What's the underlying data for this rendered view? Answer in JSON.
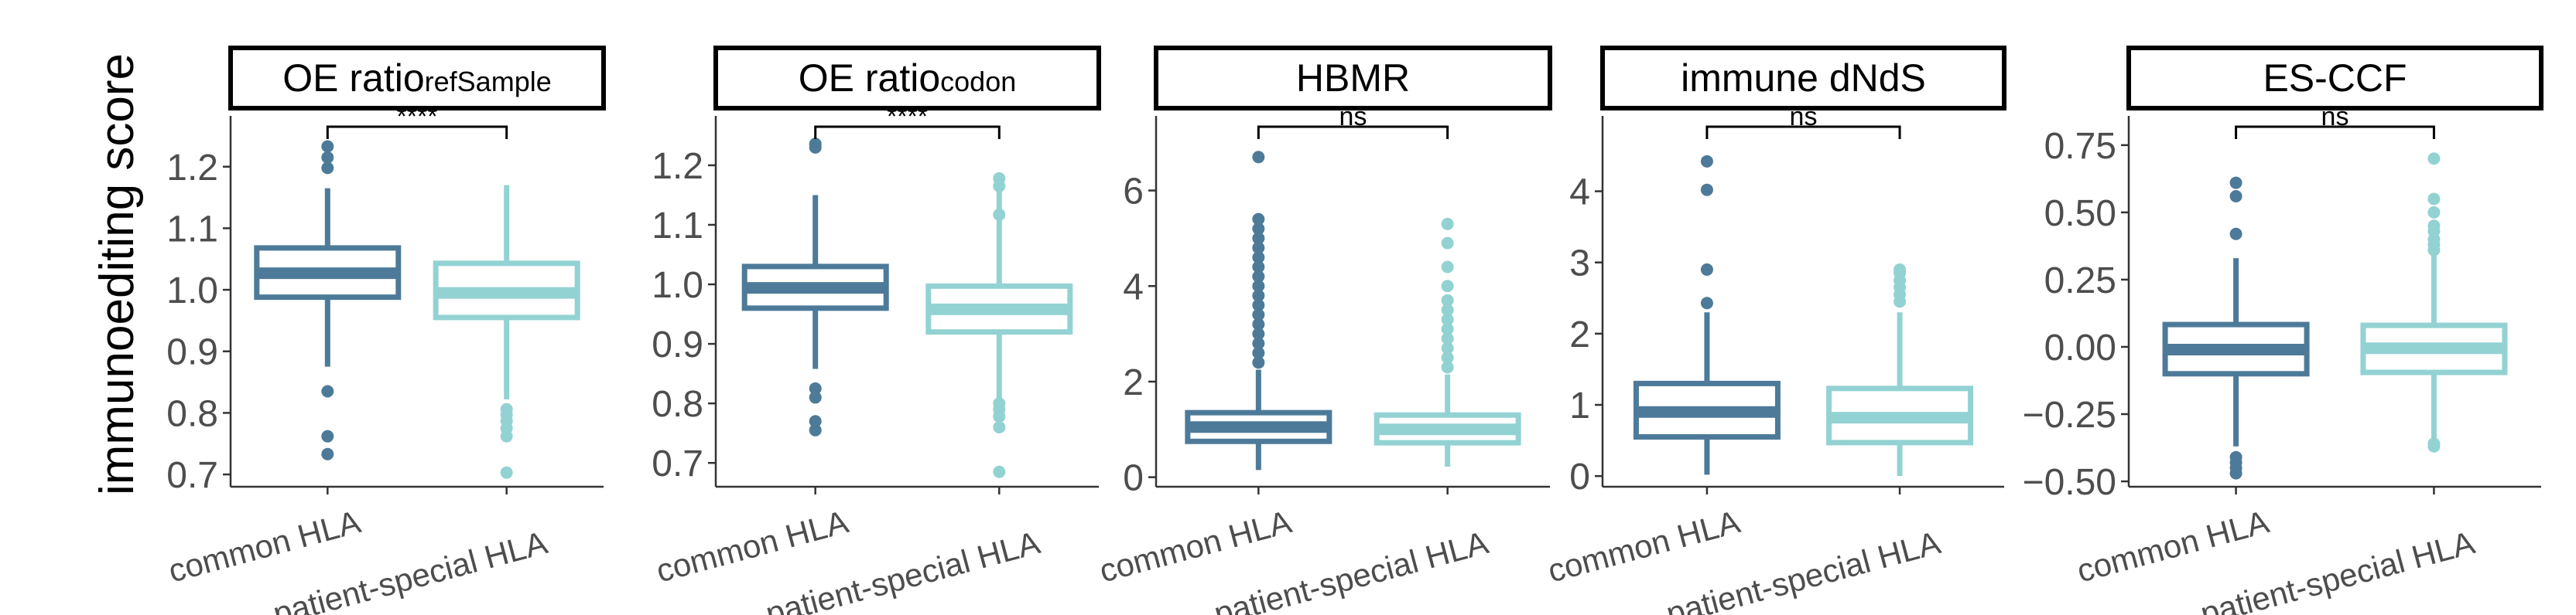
{
  "y_axis_label": "immunoediting score",
  "colors": {
    "common": "#4d7a99",
    "special": "#93d2d3",
    "axis": "#333333",
    "text": "#4d4d4d"
  },
  "chart_data": [
    {
      "type": "box",
      "title": "OE ratio",
      "title_sub": "refSample",
      "categories": [
        "common HLA",
        "patient-special  HLA"
      ],
      "ylim": [
        0.68,
        1.27
      ],
      "yticks": [
        0.7,
        0.8,
        0.9,
        1.0,
        1.1,
        1.2
      ],
      "ytick_labels": [
        "0.7",
        "0.8",
        "0.9",
        "1.0",
        "1.1",
        "1.2"
      ],
      "significance": "****",
      "boxes": [
        {
          "name": "common HLA",
          "q1": 0.988,
          "median": 1.027,
          "q3": 1.068,
          "whisker_low": 0.875,
          "whisker_high": 1.165,
          "outliers": [
            0.733,
            0.762,
            0.835,
            1.198,
            1.215,
            1.233
          ]
        },
        {
          "name": "patient-special  HLA",
          "q1": 0.955,
          "median": 0.995,
          "q3": 1.043,
          "whisker_low": 0.822,
          "whisker_high": 1.17,
          "outliers": [
            0.703,
            0.762,
            0.775,
            0.787,
            0.797,
            0.806
          ]
        }
      ]
    },
    {
      "type": "box",
      "title": "OE ratio",
      "title_sub": "codon",
      "categories": [
        "common HLA",
        "patient-special  HLA"
      ],
      "ylim": [
        0.66,
        1.27
      ],
      "yticks": [
        0.7,
        0.8,
        0.9,
        1.0,
        1.1,
        1.2
      ],
      "ytick_labels": [
        "0.7",
        "0.8",
        "0.9",
        "1.0",
        "1.1",
        "1.2"
      ],
      "significance": "****",
      "boxes": [
        {
          "name": "common HLA",
          "q1": 0.96,
          "median": 0.994,
          "q3": 1.03,
          "whisker_low": 0.858,
          "whisker_high": 1.15,
          "outliers": [
            0.755,
            0.77,
            0.81,
            0.825,
            1.23,
            1.236
          ]
        },
        {
          "name": "patient-special  HLA",
          "q1": 0.92,
          "median": 0.958,
          "q3": 0.997,
          "whisker_low": 0.805,
          "whisker_high": 1.165,
          "outliers": [
            0.685,
            0.76,
            0.778,
            0.79,
            0.8,
            1.117,
            1.165,
            1.178
          ]
        }
      ]
    },
    {
      "type": "box",
      "title": "HBMR",
      "title_sub": "",
      "categories": [
        "common HLA",
        "patient-special  HLA"
      ],
      "ylim": [
        -0.2,
        7.4
      ],
      "yticks": [
        0,
        2,
        4,
        6
      ],
      "ytick_labels": [
        "0",
        "2",
        "4",
        "6"
      ],
      "significance": "ns",
      "boxes": [
        {
          "name": "common HLA",
          "q1": 0.75,
          "median": 1.05,
          "q3": 1.35,
          "whisker_low": 0.15,
          "whisker_high": 2.25,
          "outliers": [
            2.4,
            2.6,
            2.8,
            3.0,
            3.2,
            3.4,
            3.6,
            3.8,
            4.0,
            4.2,
            4.4,
            4.6,
            4.8,
            5.0,
            5.2,
            5.4,
            6.7
          ]
        },
        {
          "name": "patient-special  HLA",
          "q1": 0.72,
          "median": 1.0,
          "q3": 1.3,
          "whisker_low": 0.22,
          "whisker_high": 2.15,
          "outliers": [
            2.3,
            2.5,
            2.7,
            2.9,
            3.1,
            3.3,
            3.5,
            3.7,
            4.0,
            4.4,
            4.9,
            5.3
          ]
        }
      ]
    },
    {
      "type": "box",
      "title": "immune dNdS",
      "title_sub": "",
      "categories": [
        "common HLA",
        "patient-special  HLA"
      ],
      "ylim": [
        -0.15,
        4.95
      ],
      "yticks": [
        0,
        1,
        2,
        3,
        4
      ],
      "ytick_labels": [
        "0",
        "1",
        "2",
        "3",
        "4"
      ],
      "significance": "ns",
      "boxes": [
        {
          "name": "common HLA",
          "q1": 0.55,
          "median": 0.9,
          "q3": 1.3,
          "whisker_low": 0.02,
          "whisker_high": 2.3,
          "outliers": [
            2.43,
            2.9,
            4.02,
            4.42
          ]
        },
        {
          "name": "patient-special  HLA",
          "q1": 0.47,
          "median": 0.82,
          "q3": 1.23,
          "whisker_low": 0.0,
          "whisker_high": 2.3,
          "outliers": [
            2.45,
            2.55,
            2.65,
            2.75,
            2.85,
            2.9
          ]
        }
      ]
    },
    {
      "type": "box",
      "title": "ES-CCF",
      "title_sub": "",
      "categories": [
        "common HLA",
        "patient-special  HLA"
      ],
      "ylim": [
        -0.52,
        0.83
      ],
      "yticks": [
        -0.5,
        -0.25,
        0.0,
        0.25,
        0.5,
        0.75
      ],
      "ytick_labels": [
        "−0.50",
        "−0.25",
        "0.00",
        "0.25",
        "0.50",
        "0.75"
      ],
      "significance": "ns",
      "boxes": [
        {
          "name": "common HLA",
          "q1": -0.1,
          "median": -0.01,
          "q3": 0.083,
          "whisker_low": -0.37,
          "whisker_high": 0.33,
          "outliers": [
            -0.41,
            -0.43,
            -0.45,
            -0.47,
            0.42,
            0.56,
            0.61
          ]
        },
        {
          "name": "patient-special  HLA",
          "q1": -0.095,
          "median": -0.005,
          "q3": 0.08,
          "whisker_low": -0.34,
          "whisker_high": 0.34,
          "outliers": [
            -0.36,
            -0.37,
            0.36,
            0.38,
            0.4,
            0.43,
            0.45,
            0.5,
            0.55,
            0.7
          ]
        }
      ]
    }
  ]
}
